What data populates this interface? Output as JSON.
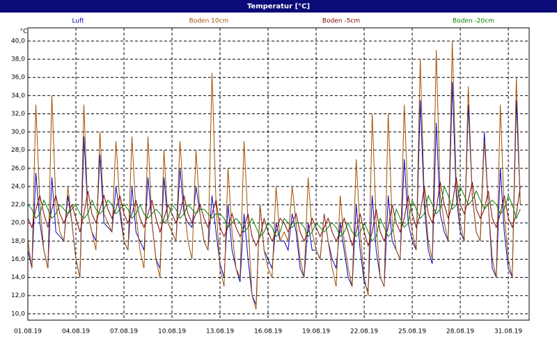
{
  "chart_data": {
    "type": "line",
    "title": "Temperatur [°C]",
    "ylabel": "°C",
    "xlim": [
      0,
      31.3
    ],
    "xticks": [
      {
        "value": 0,
        "label": "01.08.19"
      },
      {
        "value": 3,
        "label": "04.08.19"
      },
      {
        "value": 6,
        "label": "07.08.19"
      },
      {
        "value": 9,
        "label": "10.08.19"
      },
      {
        "value": 12,
        "label": "13.08.19"
      },
      {
        "value": 15,
        "label": "16.08.19"
      },
      {
        "value": 18,
        "label": "19.08.19"
      },
      {
        "value": 21,
        "label": "22.08.19"
      },
      {
        "value": 24,
        "label": "25.08.19"
      },
      {
        "value": 27,
        "label": "28.08.19"
      },
      {
        "value": 30,
        "label": "31.08.19"
      }
    ],
    "ylim": [
      9.3,
      41.45
    ],
    "yticks": [
      {
        "value": 10,
        "label": "10,0"
      },
      {
        "value": 12,
        "label": "12,0"
      },
      {
        "value": 14,
        "label": "14,0"
      },
      {
        "value": 16,
        "label": "16,0"
      },
      {
        "value": 18,
        "label": "18,0"
      },
      {
        "value": 20,
        "label": "20,0"
      },
      {
        "value": 22,
        "label": "22,0"
      },
      {
        "value": 24,
        "label": "24,0"
      },
      {
        "value": 26,
        "label": "26,0"
      },
      {
        "value": 28,
        "label": "28,0"
      },
      {
        "value": 30,
        "label": "30,0"
      },
      {
        "value": 32,
        "label": "32,0"
      },
      {
        "value": 34,
        "label": "34,0"
      },
      {
        "value": 36,
        "label": "36,0"
      },
      {
        "value": 38,
        "label": "38,0"
      },
      {
        "value": 40,
        "label": "40,0"
      }
    ],
    "grid": true,
    "x": [
      0,
      0.25,
      0.5,
      0.75,
      1,
      1.25,
      1.5,
      1.75,
      2,
      2.25,
      2.5,
      2.75,
      3,
      3.25,
      3.5,
      3.75,
      4,
      4.25,
      4.5,
      4.75,
      5,
      5.25,
      5.5,
      5.75,
      6,
      6.25,
      6.5,
      6.75,
      7,
      7.25,
      7.5,
      7.75,
      8,
      8.25,
      8.5,
      8.75,
      9,
      9.25,
      9.5,
      9.75,
      10,
      10.25,
      10.5,
      10.75,
      11,
      11.25,
      11.5,
      11.75,
      12,
      12.25,
      12.5,
      12.75,
      13,
      13.25,
      13.5,
      13.75,
      14,
      14.25,
      14.5,
      14.75,
      15,
      15.25,
      15.5,
      15.75,
      16,
      16.25,
      16.5,
      16.75,
      17,
      17.25,
      17.5,
      17.75,
      18,
      18.25,
      18.5,
      18.75,
      19,
      19.25,
      19.5,
      19.75,
      20,
      20.25,
      20.5,
      20.75,
      21,
      21.25,
      21.5,
      21.75,
      22,
      22.25,
      22.5,
      22.75,
      23,
      23.25,
      23.5,
      23.75,
      24,
      24.25,
      24.5,
      24.75,
      25,
      25.25,
      25.5,
      25.75,
      26,
      26.25,
      26.5,
      26.75,
      27,
      27.25,
      27.5,
      27.75,
      28,
      28.25,
      28.5,
      28.75,
      29,
      29.25,
      29.5,
      29.75,
      30,
      30.25,
      30.5,
      30.75
    ],
    "series": [
      {
        "name": "Luft",
        "color": "#0000c0",
        "values": [
          17,
          15,
          25.5,
          20,
          17,
          15,
          25,
          19,
          18.5,
          18,
          23,
          20,
          16,
          14,
          29.5,
          21,
          19,
          18,
          27.5,
          20,
          19.5,
          19,
          24,
          21,
          18,
          17,
          24,
          19,
          18,
          17,
          25,
          20,
          16,
          15,
          25,
          20,
          19,
          18,
          26,
          21,
          20,
          19.5,
          24,
          21,
          18,
          17,
          23,
          19,
          15.5,
          14,
          22,
          17,
          15,
          13.5,
          21,
          16,
          12,
          11,
          22,
          17,
          16,
          15,
          20,
          18,
          18,
          17,
          21,
          19,
          15,
          14,
          20,
          17,
          17,
          16,
          21,
          18,
          16,
          15,
          20,
          17,
          14,
          13,
          22,
          17,
          13.5,
          12.5,
          23,
          17,
          14,
          13,
          23,
          18,
          17,
          16,
          27,
          20,
          18,
          17,
          33.5,
          22,
          17,
          15.5,
          31,
          21,
          19,
          18,
          35.5,
          23,
          19,
          18,
          33,
          23,
          19,
          18,
          30,
          22,
          15,
          14,
          26,
          19,
          15,
          14,
          33.5,
          22
        ]
      },
      {
        "name": "Boden 10cm",
        "color": "#a05000",
        "values": [
          18,
          15,
          33,
          22,
          17,
          15,
          34,
          22,
          19,
          18,
          24,
          20,
          16,
          14,
          33,
          21,
          19,
          17,
          30,
          21,
          20,
          19,
          29,
          22,
          18,
          17,
          29.5,
          21,
          17,
          15,
          29.5,
          20,
          16,
          14,
          28,
          20,
          19,
          18,
          29,
          22,
          18,
          16,
          28,
          21,
          18,
          17,
          36.5,
          22,
          15,
          13,
          26,
          19,
          15,
          14,
          29,
          20,
          12,
          10.5,
          22,
          17,
          15,
          14,
          24,
          18,
          19,
          18,
          24,
          20,
          16,
          14,
          25,
          19,
          17,
          16,
          21,
          18,
          15,
          13,
          23,
          18,
          15,
          13,
          27,
          19,
          14,
          12,
          32,
          20,
          14,
          13,
          32,
          20,
          17,
          16,
          33,
          22,
          19,
          17,
          38,
          23,
          18,
          16,
          39,
          23,
          20,
          18,
          40,
          24,
          20,
          18,
          35,
          23,
          19,
          18,
          29,
          22,
          16,
          14,
          33,
          21,
          16,
          14,
          36,
          22
        ]
      },
      {
        "name": "Boden -5cm",
        "color": "#800000",
        "values": [
          20.5,
          19.5,
          21.5,
          23,
          21,
          19.5,
          21.5,
          23,
          21,
          20,
          21,
          22,
          20.5,
          19,
          21,
          23.5,
          21,
          20,
          21.5,
          23,
          21.5,
          20.5,
          21.5,
          23,
          21,
          20,
          21,
          22.5,
          20.5,
          19.5,
          21,
          22.5,
          20.5,
          19,
          20.5,
          22,
          21,
          20,
          21,
          23,
          21,
          20,
          21,
          22,
          20.5,
          19.5,
          21,
          22.5,
          19.5,
          18.5,
          19.5,
          21,
          19.5,
          18.5,
          19.5,
          21,
          18.5,
          17.5,
          18.5,
          20.5,
          19,
          18,
          19,
          20.5,
          20,
          19,
          20,
          21,
          19,
          18,
          19,
          20.5,
          19.5,
          18.5,
          19.5,
          20.5,
          19,
          18,
          19,
          20.5,
          19,
          17.5,
          19,
          21,
          19,
          17.5,
          19,
          21.5,
          19,
          18,
          19.5,
          22,
          20,
          19,
          20.5,
          23,
          21,
          19.5,
          21,
          24,
          21,
          20,
          21.5,
          24.5,
          22,
          20.5,
          22,
          25,
          22,
          21,
          22.5,
          24.5,
          21.5,
          20.5,
          21.5,
          23.5,
          20.5,
          19.5,
          21,
          23,
          20.5,
          19.5,
          21,
          24
        ]
      },
      {
        "name": "Boden -20cm",
        "color": "#008000",
        "values": [
          22,
          21.5,
          20.5,
          21,
          22.5,
          21.5,
          20.5,
          21,
          22,
          21.5,
          21,
          21.5,
          22,
          21,
          20.5,
          21,
          22.5,
          21.5,
          21,
          21.5,
          22.5,
          22,
          21,
          21.5,
          22,
          21.5,
          20.5,
          21,
          22,
          21,
          20.5,
          21,
          21.5,
          21,
          20,
          20.5,
          22,
          21.5,
          20.5,
          21,
          22,
          21.5,
          21,
          21.5,
          21.5,
          21,
          20.5,
          21,
          21,
          20.5,
          19.5,
          20,
          20.5,
          20,
          19,
          19.5,
          20.5,
          19.5,
          18.5,
          19,
          20,
          19.5,
          18.5,
          19,
          20.5,
          20,
          19.5,
          20,
          20,
          19.5,
          18.5,
          19,
          20,
          19.5,
          19,
          19.5,
          20,
          19.5,
          18.5,
          19,
          20,
          19,
          18.5,
          19,
          20,
          19,
          18,
          18.5,
          20.5,
          19.5,
          18.5,
          19,
          21.5,
          20.5,
          19.5,
          20,
          22.5,
          21.5,
          20.5,
          21,
          23,
          22,
          21,
          21.5,
          24,
          23,
          21.5,
          22,
          24,
          23,
          22,
          22.5,
          23.5,
          22.5,
          21.5,
          22,
          22.5,
          22,
          21,
          21.5,
          23,
          22,
          20.5,
          21.5
        ]
      }
    ]
  }
}
